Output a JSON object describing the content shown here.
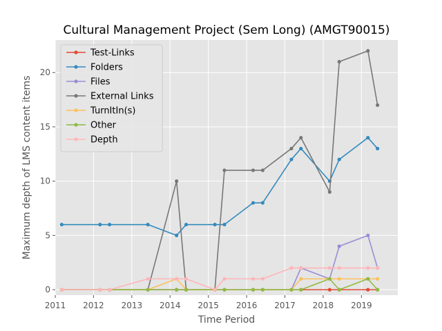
{
  "chart_data": {
    "type": "line",
    "title": "Cultural Management Project (Sem Long) (AMGT90015)",
    "xlabel": "Time Period",
    "ylabel": "Maximum depth of LMS content items",
    "x": [
      2011.17,
      2012.17,
      2012.42,
      2013.42,
      2014.17,
      2014.42,
      2015.17,
      2015.42,
      2016.17,
      2016.42,
      2017.17,
      2017.42,
      2018.17,
      2018.42,
      2019.17,
      2019.42
    ],
    "xlim": [
      2011,
      2019.95
    ],
    "ylim": [
      -0.5,
      23
    ],
    "xticks": [
      2011,
      2012,
      2013,
      2014,
      2015,
      2016,
      2017,
      2018,
      2019
    ],
    "xtick_labels": [
      "2011",
      "2012",
      "2013",
      "2014",
      "2015",
      "2016",
      "2017",
      "2018",
      "2019"
    ],
    "yticks": [
      0,
      5,
      10,
      15,
      20
    ],
    "ytick_labels": [
      "0",
      "5",
      "10",
      "15",
      "20"
    ],
    "grid": true,
    "legend_position": "top-left",
    "series": [
      {
        "name": "Test-Links",
        "color": "#E24A33",
        "values": [
          0,
          0,
          0,
          0,
          0,
          0,
          0,
          0,
          0,
          0,
          0,
          0,
          0,
          0,
          0,
          0
        ]
      },
      {
        "name": "Folders",
        "color": "#348ABD",
        "values": [
          6,
          6,
          6,
          6,
          5,
          6,
          6,
          6,
          8,
          8,
          12,
          13,
          10,
          12,
          14,
          13
        ]
      },
      {
        "name": "Files",
        "color": "#988ED5",
        "values": [
          0,
          0,
          0,
          0,
          0,
          0,
          0,
          0,
          0,
          0,
          0,
          2,
          1,
          4,
          5,
          2
        ]
      },
      {
        "name": "External Links",
        "color": "#777777",
        "values": [
          0,
          0,
          0,
          0,
          10,
          0,
          0,
          11,
          11,
          11,
          13,
          14,
          9,
          21,
          22,
          17
        ]
      },
      {
        "name": "TurnItIn(s)",
        "color": "#FBC15E",
        "values": [
          0,
          0,
          0,
          0,
          1,
          0,
          0,
          0,
          0,
          0,
          0,
          1,
          1,
          1,
          1,
          1
        ]
      },
      {
        "name": "Other",
        "color": "#8EBA42",
        "values": [
          0,
          0,
          0,
          0,
          0,
          0,
          0,
          0,
          0,
          0,
          0,
          0,
          1,
          0,
          1,
          0
        ]
      },
      {
        "name": "Depth",
        "color": "#FFB5B8",
        "values": [
          0,
          0,
          0,
          1,
          1,
          1,
          0,
          1,
          1,
          1,
          2,
          2,
          2,
          2,
          2,
          2
        ]
      }
    ]
  }
}
